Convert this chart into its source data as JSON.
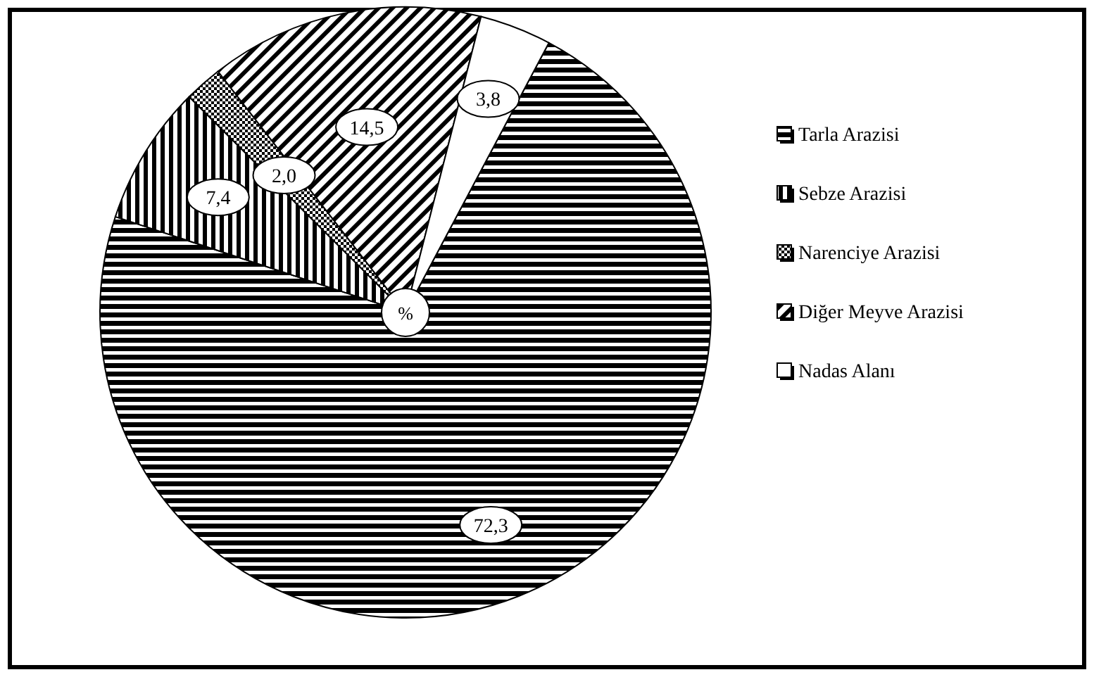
{
  "chart_data": {
    "type": "pie",
    "categories": [
      "Tarla Arazisi",
      "Sebze Arazisi",
      "Narenciye Arazisi",
      "Diğer Meyve Arazisi",
      "Nadas Alanı"
    ],
    "values": [
      72.3,
      7.4,
      2.0,
      14.5,
      3.8
    ],
    "value_labels": [
      "72,3",
      "7,4",
      "2,0",
      "14,5",
      "3,8"
    ],
    "colors": [
      "#000000",
      "#000000",
      "#000000",
      "#000000",
      "#ffffff"
    ],
    "annotations": [
      "%"
    ],
    "legend": "right"
  }
}
